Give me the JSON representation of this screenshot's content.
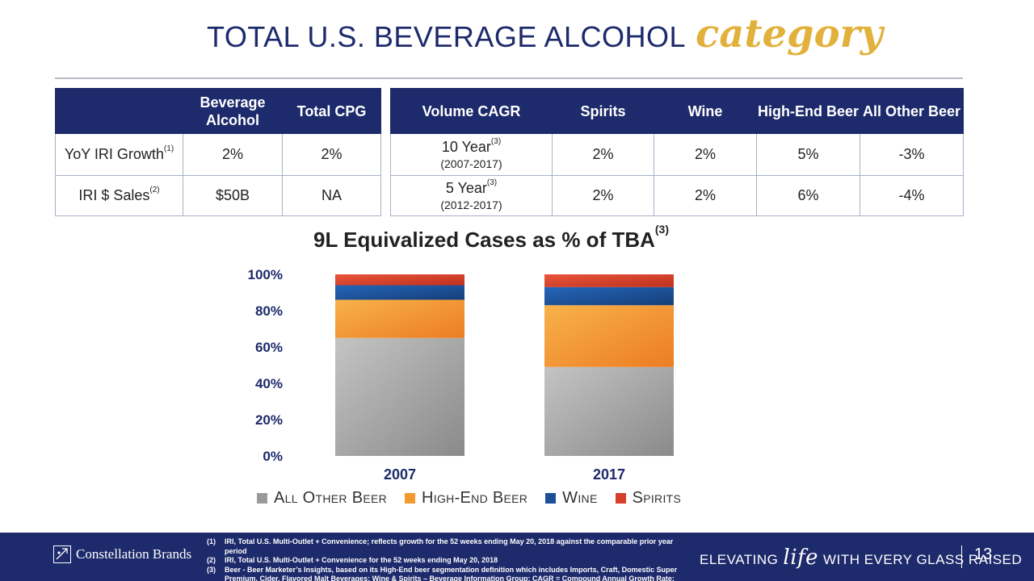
{
  "title": {
    "main": "TOTAL U.S. BEVERAGE ALCOHOL",
    "accent": "category"
  },
  "table_left": {
    "headers": [
      "",
      "Beverage Alcohol",
      "Total CPG"
    ],
    "rows": [
      {
        "label": "YoY IRI Growth",
        "note": "(1)",
        "values": [
          "2%",
          "2%"
        ]
      },
      {
        "label": "IRI $ Sales",
        "note": "(2)",
        "values": [
          "$50B",
          "NA"
        ]
      }
    ]
  },
  "table_right": {
    "headers": [
      "Volume CAGR",
      "Spirits",
      "Wine",
      "High-End Beer",
      "All Other Beer"
    ],
    "rows": [
      {
        "label": "10 Year",
        "note": "(3)",
        "sublabel": "(2007-2017)",
        "values": [
          "2%",
          "2%",
          "5%",
          "-3%"
        ]
      },
      {
        "label": "5 Year",
        "note": "(3)",
        "sublabel": "(2012-2017)",
        "values": [
          "2%",
          "2%",
          "6%",
          "-4%"
        ]
      }
    ]
  },
  "chart_data": {
    "type": "bar",
    "stacked": true,
    "title": "9L Equivalized Cases as % of TBA",
    "title_note": "(3)",
    "categories": [
      "2007",
      "2017"
    ],
    "series": [
      {
        "name": "All Other Beer",
        "values": [
          65,
          49
        ],
        "color": "#9a9a9a"
      },
      {
        "name": "High-End Beer",
        "values": [
          21,
          34
        ],
        "color": "#f39a2e"
      },
      {
        "name": "Wine",
        "values": [
          8,
          10
        ],
        "color": "#1c4f98"
      },
      {
        "name": "Spirits",
        "values": [
          6,
          7
        ],
        "color": "#d6402a"
      }
    ],
    "ylim": [
      0,
      100
    ],
    "yticks": [
      "0%",
      "20%",
      "40%",
      "60%",
      "80%",
      "100%"
    ],
    "ytick_values": [
      0,
      20,
      40,
      60,
      80,
      100
    ],
    "legend_position": "bottom"
  },
  "footer": {
    "brand": "Constellation Brands",
    "notes": [
      {
        "num": "(1)",
        "text": "IRI, Total U.S. Multi-Outlet + Convenience; reflects growth for the 52 weeks ending May 20, 2018 against the comparable prior year period"
      },
      {
        "num": "(2)",
        "text": "IRI, Total U.S. Multi-Outlet + Convenience for the 52 weeks ending May 20, 2018"
      },
      {
        "num": "(3)",
        "text": "Beer - Beer Marketer’s Insights, based on its High-End beer segmentation definition which includes Imports, Craft, Domestic Super Premium, Cider, Flavored Malt Beverages; Wine & Spirits – Beverage Information Group; CAGR = Compound Annual Growth Rate; CPG = Consumer Packaged Goods"
      }
    ],
    "tagline_pre": "ELEVATING",
    "tagline_life": "life",
    "tagline_post": "WITH EVERY GLASS RAISED",
    "page_number": "13"
  }
}
